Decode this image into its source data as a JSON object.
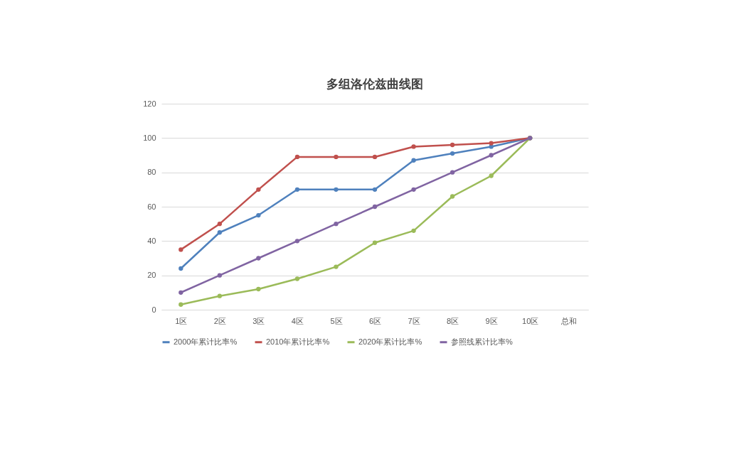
{
  "chart_data": {
    "type": "line",
    "title": "多组洛伦兹曲线图",
    "categories": [
      "1区",
      "2区",
      "3区",
      "4区",
      "5区",
      "6区",
      "7区",
      "8区",
      "9区",
      "10区",
      "总和"
    ],
    "series": [
      {
        "name": "2000年累计比率%",
        "color": "#4f81bd",
        "values": [
          24,
          45,
          55,
          70,
          70,
          70,
          87,
          91,
          95,
          100,
          null
        ]
      },
      {
        "name": "2010年累计比率%",
        "color": "#c0504d",
        "values": [
          35,
          50,
          70,
          89,
          89,
          89,
          95,
          96,
          97,
          100,
          null
        ]
      },
      {
        "name": "2020年累计比率%",
        "color": "#9bbb59",
        "values": [
          3,
          8,
          12,
          18,
          25,
          39,
          46,
          66,
          78,
          100,
          null
        ]
      },
      {
        "name": "参照线累计比率%",
        "color": "#8064a2",
        "values": [
          10,
          20,
          30,
          40,
          50,
          60,
          70,
          80,
          90,
          100,
          null
        ]
      }
    ],
    "ylim": [
      0,
      120
    ],
    "yticks": [
      0,
      20,
      40,
      60,
      80,
      100,
      120
    ],
    "grid": "y",
    "legend": "bottom",
    "marker": "circle",
    "line_style": "solid"
  }
}
